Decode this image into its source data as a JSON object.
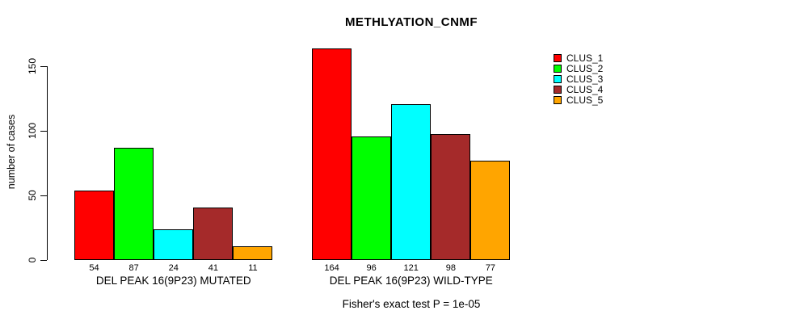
{
  "chart_data": {
    "type": "bar",
    "title": "METHLYATION_CNMF",
    "ylabel": "number of cases",
    "xlabel": "",
    "categories": [
      "DEL PEAK 16(9P23) MUTATED",
      "DEL PEAK 16(9P23) WILD-TYPE"
    ],
    "series": [
      {
        "name": "CLUS_1",
        "color": "#FF0000",
        "values": [
          54,
          164
        ]
      },
      {
        "name": "CLUS_2",
        "color": "#00FF00",
        "values": [
          87,
          96
        ]
      },
      {
        "name": "CLUS_3",
        "color": "#00FFFF",
        "values": [
          24,
          121
        ]
      },
      {
        "name": "CLUS_4",
        "color": "#A52A2A",
        "values": [
          41,
          98
        ]
      },
      {
        "name": "CLUS_5",
        "color": "#FFA500",
        "values": [
          11,
          77
        ]
      }
    ],
    "y_ticks": [
      0,
      50,
      100,
      150
    ],
    "ylim": [
      0,
      165
    ],
    "grid": false,
    "value_labels_shown": true,
    "legend_position": "right",
    "annotation": "Fisher's exact test P = 1e-05"
  }
}
